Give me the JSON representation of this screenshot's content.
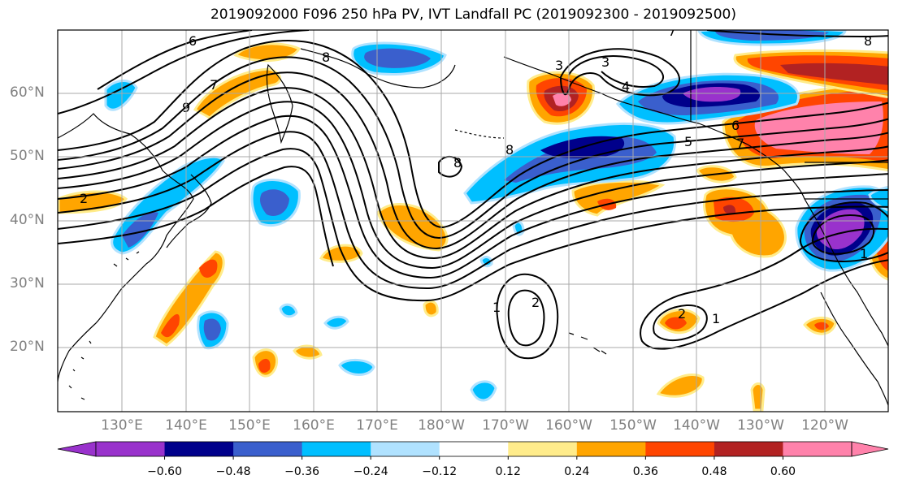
{
  "title": "2019092000 F096 250 hPa PV, IVT Landfall PC (2019092300 - 2019092500)",
  "map": {
    "lat_labels": [
      "60°N",
      "50°N",
      "40°N",
      "30°N",
      "20°N"
    ],
    "lon_labels": [
      "130°E",
      "140°E",
      "150°E",
      "160°E",
      "170°E",
      "180°W",
      "170°W",
      "160°W",
      "150°W",
      "140°W",
      "130°W",
      "120°W"
    ],
    "contour_labels": [
      "6",
      "7",
      "8",
      "9",
      "8",
      "7",
      "8",
      "3",
      "3",
      "4",
      "5",
      "6",
      "7",
      "8",
      "1",
      "2",
      "2",
      "1",
      "2",
      "1"
    ]
  },
  "colorbar": {
    "colors": [
      "#9932cc",
      "#00008b",
      "#3a5fcd",
      "#00bfff",
      "#b0e2ff",
      "#ffffff",
      "#ffec8b",
      "#ffa500",
      "#ff4500",
      "#b22222",
      "#ff82ab"
    ],
    "tick_labels": [
      "−0.60",
      "−0.48",
      "−0.36",
      "−0.24",
      "−0.12",
      "0.12",
      "0.24",
      "0.36",
      "0.48",
      "0.60"
    ]
  }
}
